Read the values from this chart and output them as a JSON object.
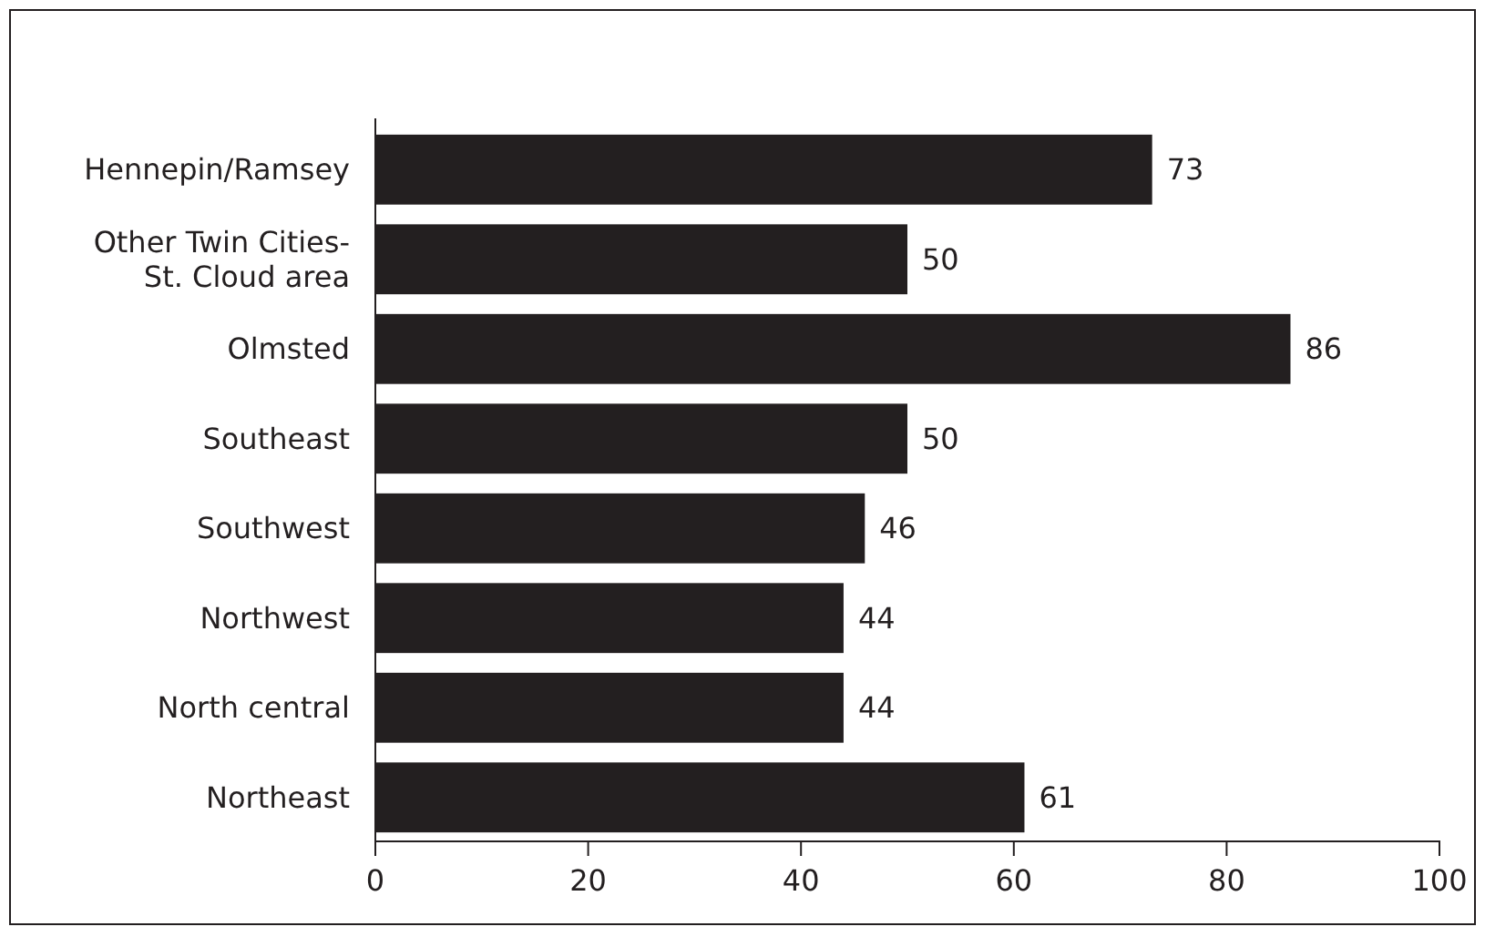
{
  "chart_data": {
    "type": "bar",
    "orientation": "horizontal",
    "categories": [
      "Hennepin/Ramsey",
      "Other Twin Cities-St. Cloud area",
      "Olmsted",
      "Southeast",
      "Southwest",
      "Northwest",
      "North central",
      "Northeast"
    ],
    "values": [
      73,
      50,
      86,
      50,
      46,
      44,
      44,
      61
    ],
    "color": "#231f20",
    "xlim": [
      0,
      100
    ],
    "xticks": [
      0,
      20,
      40,
      60,
      80,
      100
    ],
    "data_labels": true,
    "grid": false
  }
}
